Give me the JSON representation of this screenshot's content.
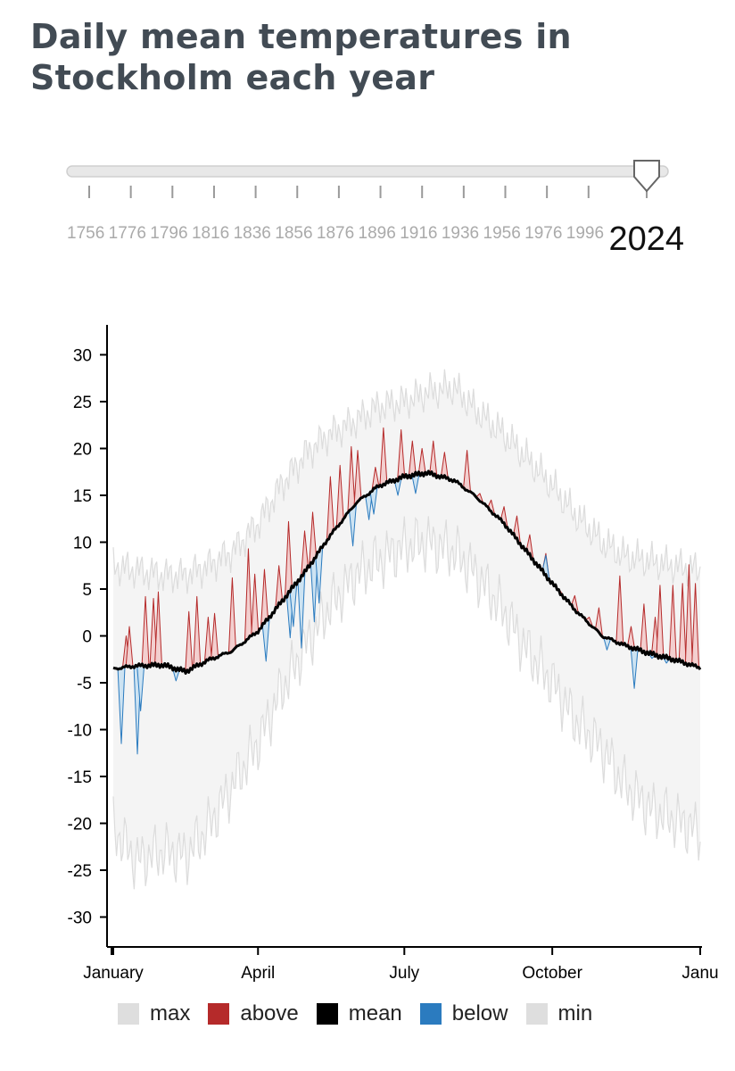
{
  "title": "Daily mean temperatures in Stockholm each year",
  "slider": {
    "tick_labels": [
      "1756",
      "1776",
      "1796",
      "1816",
      "1836",
      "1856",
      "1876",
      "1896",
      "1916",
      "1936",
      "1956",
      "1976",
      "1996"
    ],
    "selected_year": "2024",
    "min_year": 1756,
    "max_year": 2024,
    "track_color": "#e3e3e3",
    "tick_label_color": "#aaaaaa"
  },
  "legend": [
    {
      "label": "max",
      "color": "#dedede"
    },
    {
      "label": "above",
      "color": "#b52a2a"
    },
    {
      "label": "mean",
      "color": "#000000"
    },
    {
      "label": "below",
      "color": "#2b7bbf"
    },
    {
      "label": "min",
      "color": "#dedede"
    }
  ],
  "chart_data": {
    "type": "area",
    "title": "",
    "xlabel": "",
    "ylabel": "",
    "year": "2024",
    "x_ticks": [
      "January",
      "April",
      "July",
      "October",
      "Janu"
    ],
    "y_ticks": [
      30,
      25,
      20,
      15,
      10,
      5,
      0,
      -5,
      -10,
      -15,
      -20,
      -25,
      -30
    ],
    "ylim": [
      -33,
      33
    ],
    "grid": false,
    "legend_position": "bottom",
    "x_unit": "day of year",
    "mean_profile": {
      "day": [
        1,
        15,
        32,
        46,
        60,
        75,
        91,
        105,
        121,
        135,
        152,
        166,
        182,
        196,
        213,
        227,
        244,
        258,
        274,
        288,
        305,
        319,
        335,
        349,
        366
      ],
      "value": [
        -3.5,
        -3.2,
        -3.1,
        -3.8,
        -2.6,
        -1.6,
        0.5,
        3.5,
        7.0,
        10.5,
        14.2,
        16.0,
        17.0,
        17.4,
        16.6,
        14.8,
        12.0,
        9.0,
        5.6,
        2.8,
        0.0,
        -1.0,
        -1.9,
        -2.5,
        -3.4
      ]
    },
    "max_profile": {
      "day": [
        1,
        15,
        32,
        46,
        60,
        75,
        91,
        105,
        121,
        135,
        152,
        166,
        182,
        196,
        213,
        227,
        244,
        258,
        274,
        288,
        305,
        319,
        335,
        349,
        366
      ],
      "value": [
        7.5,
        7.0,
        6.5,
        6.5,
        7.5,
        9.0,
        12.0,
        16.0,
        19.5,
        21.5,
        23.0,
        24.5,
        25.0,
        26.0,
        26.5,
        24.0,
        21.5,
        19.0,
        16.0,
        13.0,
        10.0,
        8.5,
        8.0,
        7.5,
        7.0
      ]
    },
    "min_profile": {
      "day": [
        1,
        15,
        32,
        46,
        60,
        75,
        91,
        105,
        121,
        135,
        152,
        166,
        182,
        196,
        213,
        227,
        244,
        258,
        274,
        288,
        305,
        319,
        335,
        349,
        366
      ],
      "value": [
        -20.5,
        -24.0,
        -23.0,
        -23.5,
        -20.5,
        -16.0,
        -11.5,
        -6.0,
        -1.0,
        3.0,
        6.5,
        8.0,
        9.5,
        10.0,
        9.0,
        6.5,
        2.5,
        -1.5,
        -5.0,
        -9.0,
        -12.0,
        -16.0,
        -18.5,
        -19.5,
        -21.0
      ]
    },
    "series": [
      {
        "name": "above",
        "points": [
          {
            "day": 9,
            "value": 0.0
          },
          {
            "day": 11,
            "value": 1.0
          },
          {
            "day": 21,
            "value": 4.2
          },
          {
            "day": 26,
            "value": 4.0
          },
          {
            "day": 29,
            "value": 4.7
          },
          {
            "day": 48,
            "value": 2.6
          },
          {
            "day": 53,
            "value": 4.2
          },
          {
            "day": 60,
            "value": 2.0
          },
          {
            "day": 64,
            "value": 2.4
          },
          {
            "day": 75,
            "value": 6.2
          },
          {
            "day": 85,
            "value": 9.3
          },
          {
            "day": 89,
            "value": 6.6
          },
          {
            "day": 95,
            "value": 7.1
          },
          {
            "day": 104,
            "value": 7.5
          },
          {
            "day": 110,
            "value": 12.2
          },
          {
            "day": 120,
            "value": 11.2
          },
          {
            "day": 125,
            "value": 13.2
          },
          {
            "day": 136,
            "value": 17.0
          },
          {
            "day": 142,
            "value": 18.2
          },
          {
            "day": 149,
            "value": 20.2
          },
          {
            "day": 153,
            "value": 19.8
          },
          {
            "day": 164,
            "value": 18.0
          },
          {
            "day": 169,
            "value": 22.2
          },
          {
            "day": 180,
            "value": 22.0
          },
          {
            "day": 187,
            "value": 20.8
          },
          {
            "day": 193,
            "value": 20.0
          },
          {
            "day": 200,
            "value": 20.8
          },
          {
            "day": 207,
            "value": 19.6
          },
          {
            "day": 221,
            "value": 19.8
          },
          {
            "day": 229,
            "value": 15.2
          },
          {
            "day": 236,
            "value": 14.5
          },
          {
            "day": 244,
            "value": 13.8
          },
          {
            "day": 252,
            "value": 12.8
          },
          {
            "day": 260,
            "value": 10.8
          },
          {
            "day": 270,
            "value": 8.8
          },
          {
            "day": 279,
            "value": 4.8
          },
          {
            "day": 288,
            "value": 4.3
          },
          {
            "day": 297,
            "value": 2.0
          },
          {
            "day": 303,
            "value": 3.0
          },
          {
            "day": 316,
            "value": 6.4
          },
          {
            "day": 323,
            "value": 1.0
          },
          {
            "day": 331,
            "value": 3.4
          },
          {
            "day": 338,
            "value": 2.0
          },
          {
            "day": 341,
            "value": 5.4
          },
          {
            "day": 349,
            "value": 5.4
          },
          {
            "day": 355,
            "value": 5.6
          },
          {
            "day": 359,
            "value": 7.6
          },
          {
            "day": 363,
            "value": 5.6
          }
        ]
      },
      {
        "name": "below",
        "points": [
          {
            "day": 6,
            "value": -11.5
          },
          {
            "day": 16,
            "value": -12.6
          },
          {
            "day": 18,
            "value": -8.0
          },
          {
            "day": 40,
            "value": -4.8
          },
          {
            "day": 67,
            "value": -2.0
          },
          {
            "day": 96,
            "value": -2.7
          },
          {
            "day": 111,
            "value": -0.2
          },
          {
            "day": 113,
            "value": 1.0
          },
          {
            "day": 118,
            "value": -1.3
          },
          {
            "day": 126,
            "value": 1.5
          },
          {
            "day": 129,
            "value": 3.5
          },
          {
            "day": 150,
            "value": 9.6
          },
          {
            "day": 160,
            "value": 12.4
          },
          {
            "day": 163,
            "value": 13.0
          },
          {
            "day": 178,
            "value": 15.0
          },
          {
            "day": 189,
            "value": 15.2
          },
          {
            "day": 270,
            "value": 8.6
          },
          {
            "day": 308,
            "value": -1.5
          },
          {
            "day": 325,
            "value": -5.6
          },
          {
            "day": 336,
            "value": -2.4
          },
          {
            "day": 345,
            "value": -2.9
          }
        ]
      }
    ]
  }
}
